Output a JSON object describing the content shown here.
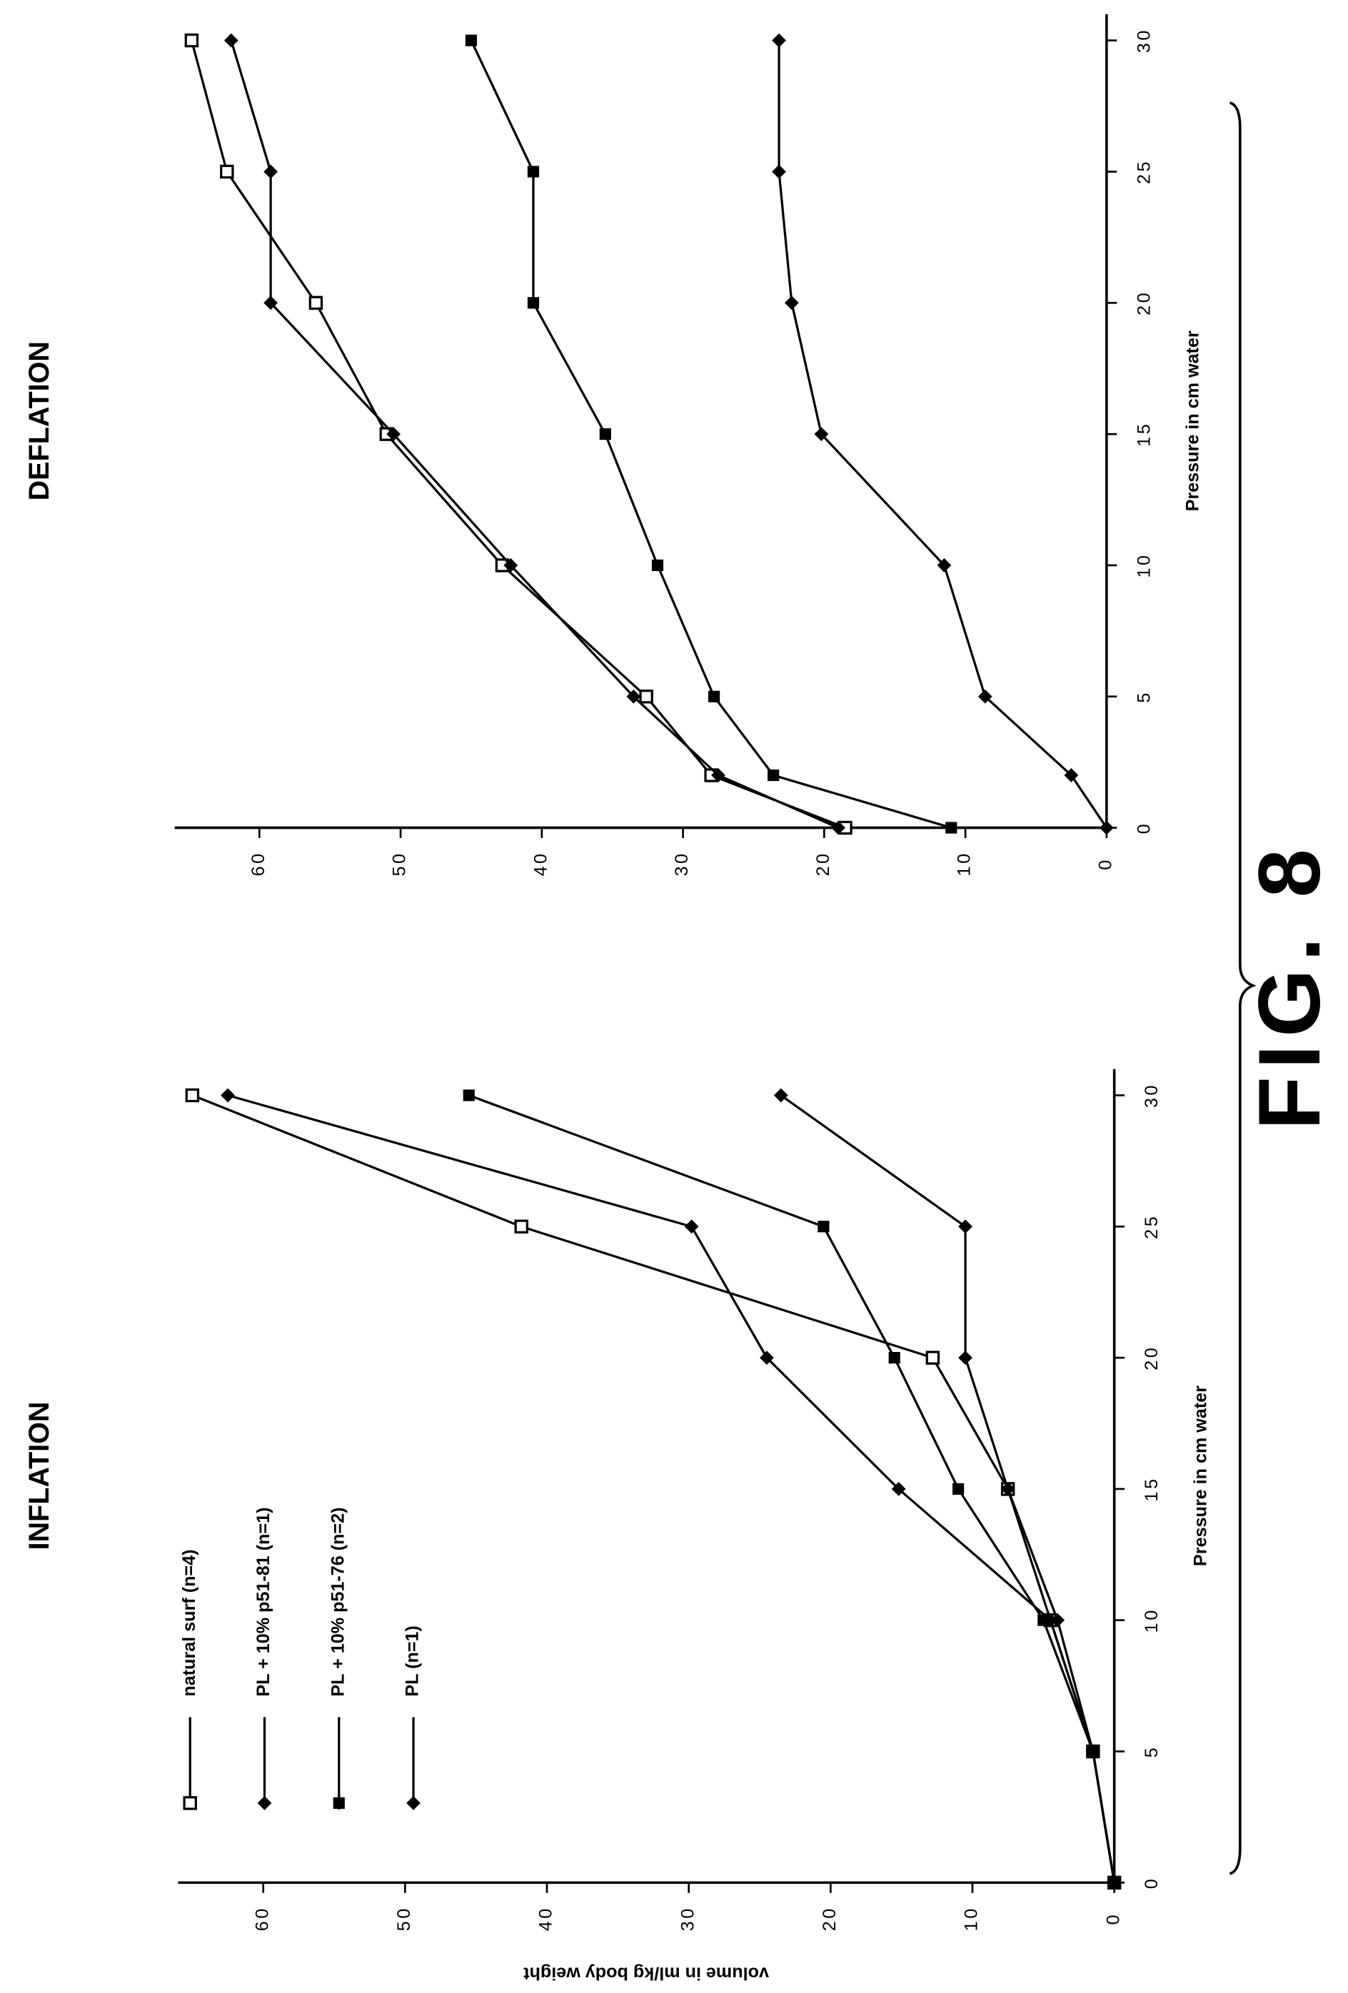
{
  "figure_label": "FIG. 8",
  "chart_data": [
    {
      "type": "line",
      "title": "INFLATION",
      "x_label": "Pressure in cm water",
      "y_label": "volume in ml/kg body weight",
      "x": [
        0,
        5,
        10,
        15,
        20,
        25,
        30
      ],
      "xlim": [
        0,
        31
      ],
      "ylim": [
        0,
        66
      ],
      "xticks": [
        0,
        5,
        10,
        15,
        20,
        25,
        30
      ],
      "yticks": [
        0,
        10,
        20,
        30,
        40,
        50,
        60
      ],
      "legend": true,
      "series": [
        {
          "name": "natural surf (n=4)",
          "color": "#000000",
          "marker": "open-square",
          "values": [
            0,
            1.5,
            4.5,
            7.5,
            12.8,
            41.8,
            65
          ]
        },
        {
          "name": "PL + 10% p51-81 (n=1)",
          "color": "#000000",
          "marker": "diamond",
          "values": [
            0,
            1.5,
            4.5,
            15.2,
            24.5,
            29.8,
            62.5
          ]
        },
        {
          "name": "PL + 10% p51-76 (n=2)",
          "color": "#000000",
          "marker": "filled-square",
          "values": [
            0,
            1.5,
            5,
            11,
            15.5,
            20.5,
            45.5
          ]
        },
        {
          "name": "PL (n=1)",
          "color": "#000000",
          "marker": "diamond",
          "values": [
            0,
            1.5,
            4,
            7.5,
            10.5,
            10.5,
            23.5
          ]
        }
      ]
    },
    {
      "type": "line",
      "title": "DEFLATION",
      "x_label": "Pressure in cm water",
      "x": [
        0,
        2,
        5,
        10,
        15,
        20,
        25,
        30
      ],
      "xlim": [
        0,
        31
      ],
      "ylim": [
        0,
        66
      ],
      "xticks": [
        0,
        5,
        10,
        15,
        20,
        25,
        30
      ],
      "yticks": [
        0,
        10,
        20,
        30,
        40,
        50,
        60
      ],
      "legend": false,
      "series": [
        {
          "color": "#000000",
          "marker": "open-square",
          "values": [
            18.5,
            28,
            32.6,
            42.8,
            51,
            56,
            62.3,
            64.8
          ]
        },
        {
          "color": "#000000",
          "marker": "diamond",
          "values": [
            19,
            27.5,
            33.5,
            42.2,
            50.5,
            59.2,
            59.2,
            62
          ]
        },
        {
          "color": "#000000",
          "marker": "filled-square",
          "values": [
            11,
            23.6,
            27.8,
            31.8,
            35.5,
            40.6,
            40.6,
            45
          ]
        },
        {
          "color": "#000000",
          "marker": "diamond",
          "values": [
            0,
            2.5,
            8.6,
            11.5,
            20.2,
            22.3,
            23.2,
            23.2
          ]
        }
      ]
    }
  ]
}
